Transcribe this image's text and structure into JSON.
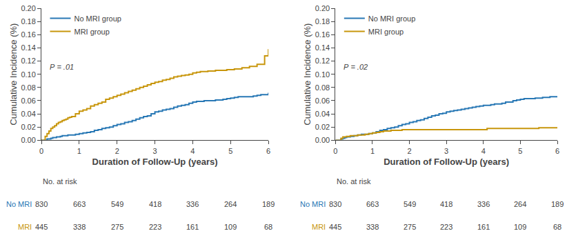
{
  "chart_data": [
    {
      "type": "step",
      "xlabel": "Duration of Follow-Up (years)",
      "ylabel": "Cumulative Incidence (%)",
      "xlim": [
        0,
        6
      ],
      "xticks": [
        0,
        1,
        2,
        3,
        4,
        5,
        6
      ],
      "ylim": [
        0,
        0.2
      ],
      "yticks": [
        {
          "value": 0.0,
          "label": "0.00"
        },
        {
          "value": 0.02,
          "label": "0.02"
        },
        {
          "value": 0.04,
          "label": "0.04"
        },
        {
          "value": 0.06,
          "label": "0.06"
        },
        {
          "value": 0.08,
          "label": "0.08"
        },
        {
          "value": 0.1,
          "label": "0.10"
        },
        {
          "value": 0.12,
          "label": "0.12"
        },
        {
          "value": 0.14,
          "label": "0.14"
        },
        {
          "value": 0.16,
          "label": "0.16"
        },
        {
          "value": 0.18,
          "label": "0.18"
        },
        {
          "value": 0.2,
          "label": "0.20"
        }
      ],
      "grid": false,
      "legend": "upper left",
      "series": [
        {
          "name": "No MRI group",
          "color": "#2878b5",
          "x": [
            0,
            0.15,
            0.2,
            0.25,
            0.3,
            0.35,
            0.4,
            0.45,
            0.5,
            0.55,
            0.6,
            0.65,
            0.7,
            0.75,
            0.8,
            0.9,
            1.0,
            1.1,
            1.2,
            1.3,
            1.4,
            1.5,
            1.6,
            1.7,
            1.8,
            1.9,
            2.0,
            2.1,
            2.2,
            2.3,
            2.4,
            2.5,
            2.6,
            2.7,
            2.8,
            2.9,
            3.0,
            3.1,
            3.2,
            3.3,
            3.4,
            3.5,
            3.6,
            3.7,
            3.8,
            3.9,
            4.0,
            4.1,
            4.2,
            4.3,
            4.5,
            4.6,
            4.8,
            4.9,
            5.0,
            5.1,
            5.2,
            5.4,
            5.6,
            5.7,
            5.8,
            6.0
          ],
          "values": [
            0,
            0.002,
            0.002,
            0.003,
            0.004,
            0.004,
            0.005,
            0.005,
            0.006,
            0.007,
            0.007,
            0.007,
            0.008,
            0.008,
            0.008,
            0.009,
            0.01,
            0.011,
            0.012,
            0.013,
            0.015,
            0.016,
            0.018,
            0.019,
            0.02,
            0.022,
            0.024,
            0.025,
            0.027,
            0.028,
            0.03,
            0.032,
            0.034,
            0.036,
            0.037,
            0.04,
            0.043,
            0.044,
            0.046,
            0.047,
            0.048,
            0.05,
            0.052,
            0.053,
            0.054,
            0.056,
            0.058,
            0.059,
            0.059,
            0.06,
            0.06,
            0.061,
            0.062,
            0.063,
            0.064,
            0.065,
            0.066,
            0.066,
            0.067,
            0.068,
            0.069,
            0.072
          ]
        },
        {
          "name": "MRI group",
          "color": "#C8960C",
          "x": [
            0,
            0.1,
            0.15,
            0.2,
            0.25,
            0.3,
            0.35,
            0.4,
            0.45,
            0.5,
            0.55,
            0.6,
            0.65,
            0.7,
            0.75,
            0.8,
            0.9,
            1.0,
            1.1,
            1.2,
            1.3,
            1.4,
            1.5,
            1.6,
            1.7,
            1.8,
            1.9,
            2.0,
            2.1,
            2.2,
            2.3,
            2.4,
            2.5,
            2.6,
            2.7,
            2.8,
            2.9,
            3.0,
            3.1,
            3.2,
            3.3,
            3.4,
            3.5,
            3.6,
            3.7,
            3.8,
            3.9,
            4.0,
            4.1,
            4.2,
            4.3,
            4.4,
            4.5,
            4.6,
            4.8,
            4.9,
            5.0,
            5.1,
            5.3,
            5.5,
            5.7,
            5.9,
            6.0
          ],
          "values": [
            0,
            0.006,
            0.01,
            0.014,
            0.018,
            0.02,
            0.022,
            0.025,
            0.027,
            0.028,
            0.03,
            0.031,
            0.032,
            0.034,
            0.035,
            0.036,
            0.04,
            0.044,
            0.046,
            0.048,
            0.052,
            0.054,
            0.056,
            0.058,
            0.062,
            0.064,
            0.066,
            0.068,
            0.07,
            0.072,
            0.074,
            0.076,
            0.078,
            0.08,
            0.082,
            0.084,
            0.086,
            0.088,
            0.089,
            0.091,
            0.092,
            0.094,
            0.096,
            0.097,
            0.098,
            0.099,
            0.1,
            0.102,
            0.103,
            0.104,
            0.104,
            0.105,
            0.105,
            0.106,
            0.106,
            0.107,
            0.107,
            0.108,
            0.11,
            0.112,
            0.115,
            0.128,
            0.138
          ]
        }
      ],
      "annotations": [
        "P = .01"
      ],
      "at_risk": {
        "header": "No. at risk",
        "x": [
          0,
          1,
          2,
          3,
          4,
          5,
          6
        ],
        "rows": [
          {
            "name": "No MRI",
            "color": "#2878b5",
            "values": [
              830,
              663,
              549,
              418,
              336,
              264,
              189
            ]
          },
          {
            "name": "MRI",
            "color": "#C8960C",
            "values": [
              445,
              338,
              275,
              223,
              161,
              109,
              68
            ]
          }
        ]
      }
    },
    {
      "type": "step",
      "xlabel": "Duration of Follow-Up (years)",
      "ylabel": "Cumulative Incidence (%)",
      "xlim": [
        0,
        6
      ],
      "xticks": [
        0,
        1,
        2,
        3,
        4,
        5,
        6
      ],
      "ylim": [
        0,
        0.2
      ],
      "yticks": [
        {
          "value": 0.0,
          "label": "0.00"
        },
        {
          "value": 0.02,
          "label": "0.02"
        },
        {
          "value": 0.04,
          "label": "0.04"
        },
        {
          "value": 0.06,
          "label": "0.06"
        },
        {
          "value": 0.08,
          "label": "0.08"
        },
        {
          "value": 0.1,
          "label": "0.10"
        },
        {
          "value": 0.12,
          "label": "0.12"
        },
        {
          "value": 0.14,
          "label": "0.14"
        },
        {
          "value": 0.16,
          "label": "0.16"
        },
        {
          "value": 0.18,
          "label": "0.18"
        },
        {
          "value": 0.2,
          "label": "0.20"
        }
      ],
      "grid": false,
      "legend": "upper left",
      "series": [
        {
          "name": "No MRI group",
          "color": "#2878b5",
          "x": [
            0,
            0.15,
            0.2,
            0.25,
            0.3,
            0.35,
            0.4,
            0.45,
            0.5,
            0.55,
            0.6,
            0.65,
            0.7,
            0.75,
            0.8,
            0.9,
            1.0,
            1.1,
            1.2,
            1.3,
            1.4,
            1.5,
            1.6,
            1.7,
            1.8,
            1.9,
            2.0,
            2.1,
            2.2,
            2.3,
            2.4,
            2.5,
            2.6,
            2.7,
            2.8,
            2.9,
            3.0,
            3.1,
            3.2,
            3.3,
            3.4,
            3.5,
            3.6,
            3.7,
            3.8,
            3.9,
            4.0,
            4.2,
            4.3,
            4.5,
            4.6,
            4.8,
            4.9,
            5.0,
            5.1,
            5.2,
            5.4,
            5.6,
            5.7,
            5.8,
            6.0
          ],
          "values": [
            0,
            0.002,
            0.003,
            0.004,
            0.005,
            0.005,
            0.006,
            0.006,
            0.007,
            0.007,
            0.008,
            0.008,
            0.009,
            0.009,
            0.009,
            0.01,
            0.011,
            0.013,
            0.015,
            0.016,
            0.018,
            0.019,
            0.02,
            0.022,
            0.024,
            0.025,
            0.027,
            0.028,
            0.03,
            0.031,
            0.033,
            0.035,
            0.037,
            0.038,
            0.04,
            0.041,
            0.043,
            0.044,
            0.045,
            0.046,
            0.047,
            0.048,
            0.049,
            0.05,
            0.051,
            0.052,
            0.053,
            0.054,
            0.055,
            0.056,
            0.058,
            0.06,
            0.061,
            0.062,
            0.063,
            0.063,
            0.064,
            0.065,
            0.065,
            0.066,
            0.067
          ]
        },
        {
          "name": "MRI group",
          "color": "#C8960C",
          "x": [
            0,
            0.15,
            0.2,
            0.3,
            0.4,
            0.5,
            0.6,
            0.7,
            0.8,
            0.9,
            1.0,
            1.1,
            1.2,
            1.3,
            1.4,
            1.5,
            1.6,
            1.7,
            1.8,
            1.9,
            2.0,
            2.2,
            2.4,
            2.6,
            2.8,
            3.0,
            3.5,
            4.0,
            4.1,
            4.5,
            5.0,
            5.5,
            6.0
          ],
          "values": [
            0,
            0.003,
            0.005,
            0.006,
            0.007,
            0.007,
            0.008,
            0.008,
            0.009,
            0.01,
            0.011,
            0.012,
            0.013,
            0.014,
            0.014,
            0.015,
            0.015,
            0.015,
            0.016,
            0.016,
            0.016,
            0.016,
            0.016,
            0.016,
            0.016,
            0.016,
            0.016,
            0.016,
            0.018,
            0.018,
            0.018,
            0.019,
            0.02
          ]
        }
      ],
      "annotations": [
        "P = .02"
      ],
      "at_risk": {
        "header": "No. at risk",
        "x": [
          0,
          1,
          2,
          3,
          4,
          5,
          6
        ],
        "rows": [
          {
            "name": "No MRI",
            "color": "#2878b5",
            "values": [
              830,
              663,
              549,
              418,
              336,
              264,
              189
            ]
          },
          {
            "name": "MRI",
            "color": "#C8960C",
            "values": [
              445,
              338,
              275,
              223,
              161,
              109,
              68
            ]
          }
        ]
      }
    }
  ]
}
